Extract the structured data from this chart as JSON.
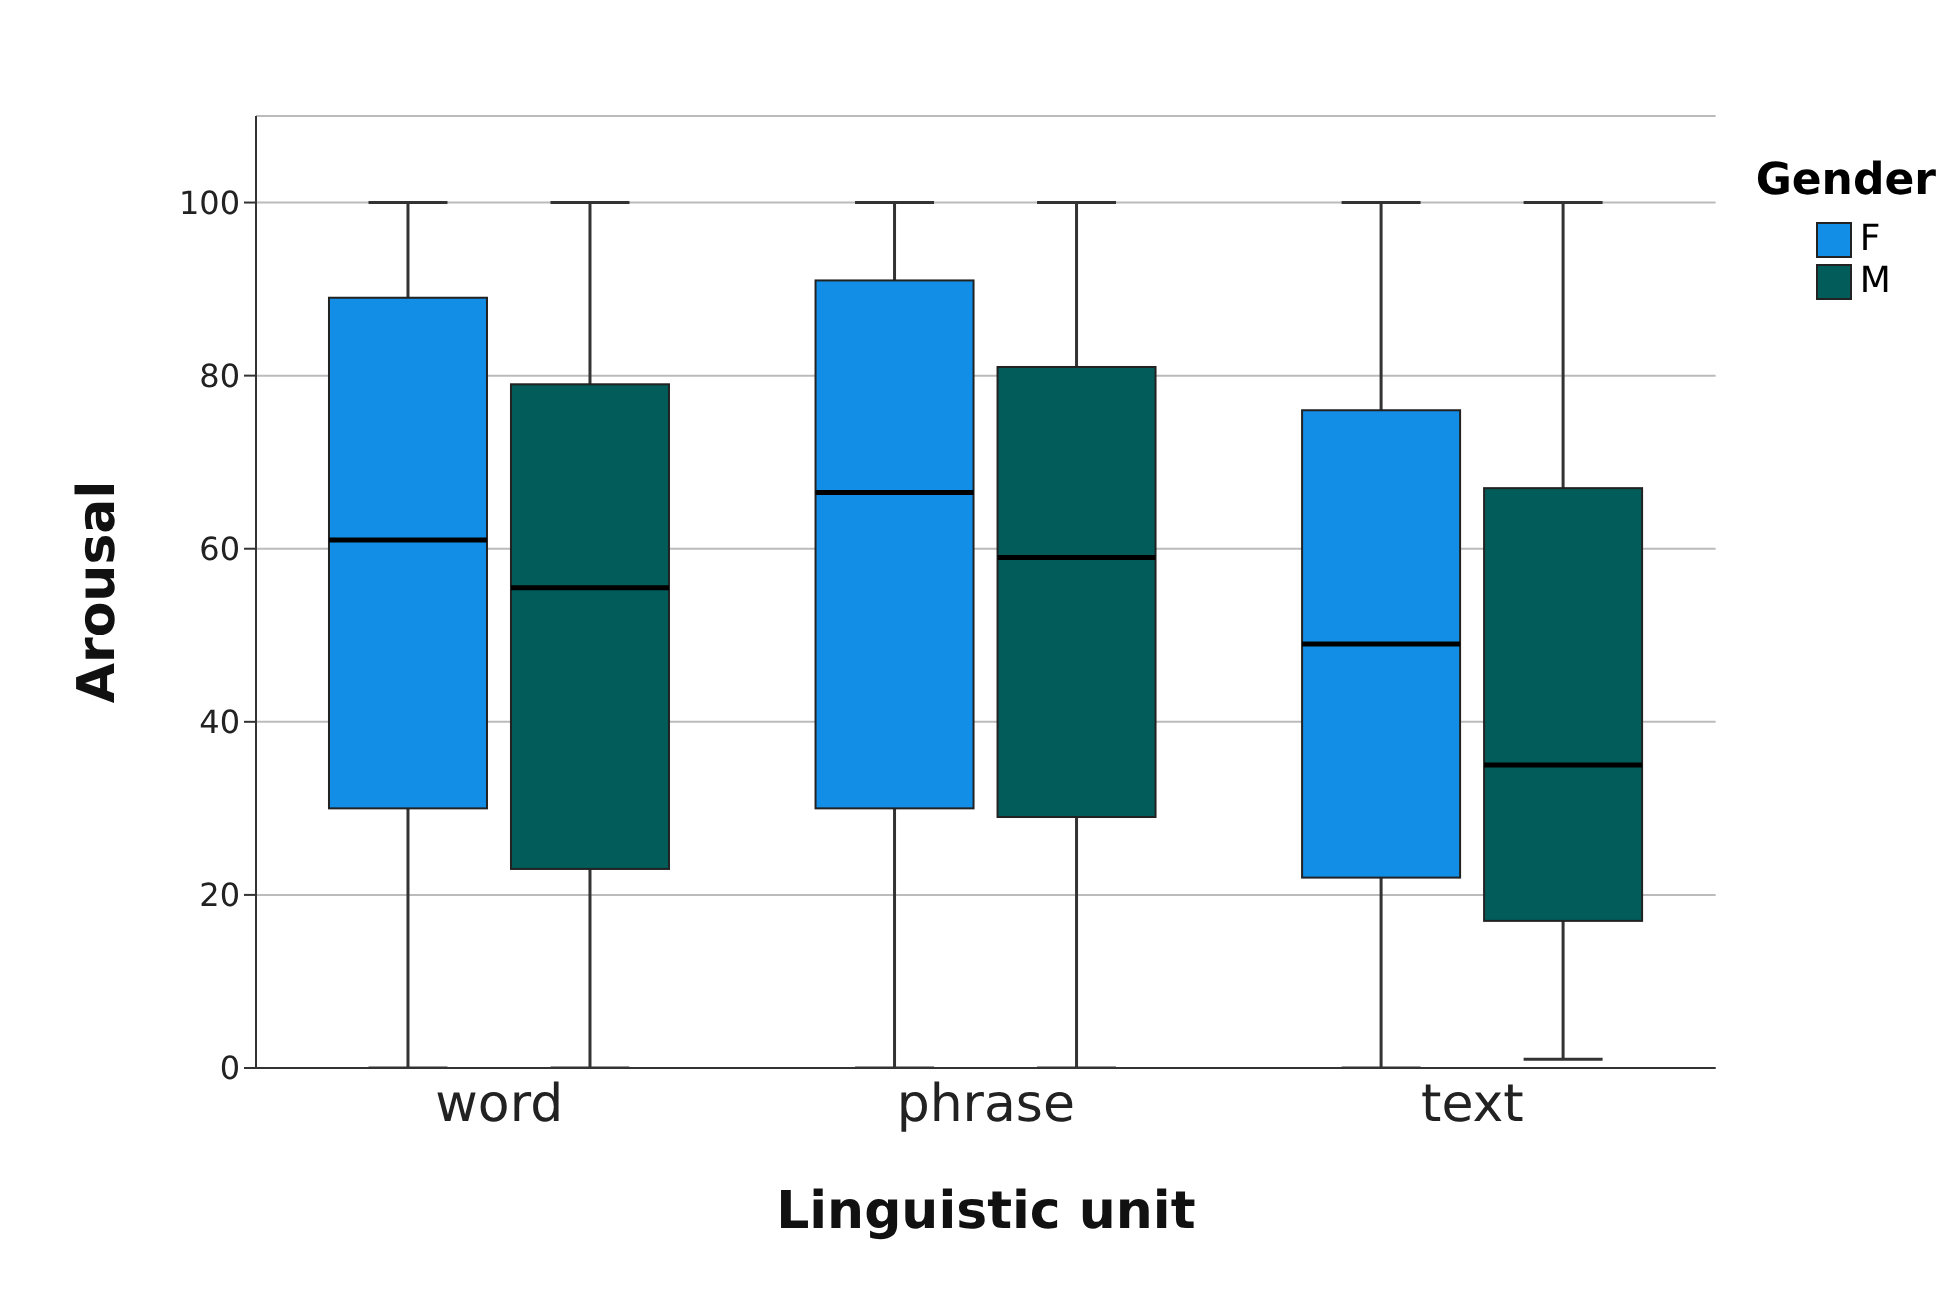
{
  "chart_data": {
    "type": "box",
    "xlabel": "Linguistic unit",
    "ylabel": "Arousal",
    "legend_title": "Gender",
    "categories": [
      "word",
      "phrase",
      "text"
    ],
    "ylim": [
      0,
      110
    ],
    "yticks": [
      0,
      20,
      40,
      60,
      80,
      100
    ],
    "grid": "y",
    "legend": "top right",
    "series": [
      {
        "name": "F",
        "color": "#128ee6",
        "boxes": [
          {
            "low": 0,
            "q1": 30,
            "median": 61,
            "q3": 89,
            "high": 100
          },
          {
            "low": 0,
            "q1": 30,
            "median": 66.5,
            "q3": 91,
            "high": 100
          },
          {
            "low": 0,
            "q1": 22,
            "median": 49,
            "q3": 76,
            "high": 100
          }
        ]
      },
      {
        "name": "M",
        "color": "#015c5a",
        "boxes": [
          {
            "low": 0,
            "q1": 23,
            "median": 55.5,
            "q3": 79,
            "high": 100
          },
          {
            "low": 0,
            "q1": 29,
            "median": 59,
            "q3": 81,
            "high": 100
          },
          {
            "low": 1,
            "q1": 17,
            "median": 35,
            "q3": 67,
            "high": 100
          }
        ]
      }
    ]
  }
}
